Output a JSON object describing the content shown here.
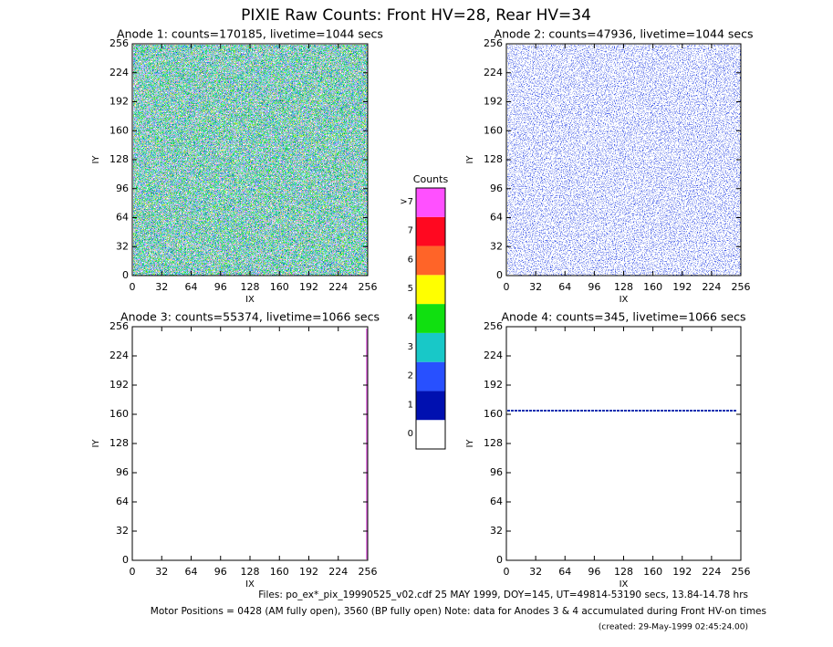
{
  "title": "PIXIE Raw Counts:  Front HV=28, Rear HV=34",
  "panels": [
    {
      "title": "Anode 1: counts=170185, livetime=1044 secs",
      "xlabel": "IX",
      "ylabel": "IY"
    },
    {
      "title": "Anode 2: counts=47936, livetime=1044 secs",
      "xlabel": "IX",
      "ylabel": "IY"
    },
    {
      "title": "Anode 3: counts=55374, livetime=1066 secs",
      "xlabel": "IX",
      "ylabel": "IY"
    },
    {
      "title": "Anode 4: counts=345, livetime=1066 secs",
      "xlabel": "IX",
      "ylabel": "IY"
    }
  ],
  "axis": {
    "lim": [
      0,
      256
    ],
    "ticks": [
      0,
      32,
      64,
      96,
      128,
      160,
      192,
      224,
      256
    ]
  },
  "colorbar": {
    "title": "Counts",
    "labels": [
      "0",
      "1",
      "2",
      "3",
      "4",
      "5",
      "6",
      "7",
      ">7"
    ],
    "colors": [
      "#ffffff",
      "#0010b0",
      "#2850ff",
      "#18c8c8",
      "#10e010",
      "#ffff00",
      "#ff6428",
      "#ff0820",
      "#ff50ff"
    ]
  },
  "footer": [
    "Files: po_ex*_pix_19990525_v02.cdf    25 MAY 1999, DOY=145, UT=49814-53190 secs, 13.84-14.78 hrs",
    "Motor Positions = 0428 (AM fully open), 3560 (BP fully open)    Note: data for Anodes 3 & 4 accumulated during Front HV-on times",
    "(created: 29-May-1999 02:45:24.00)"
  ]
}
